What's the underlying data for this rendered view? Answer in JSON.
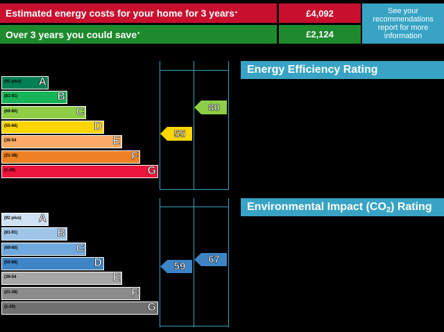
{
  "summary": {
    "cost_label": "Estimated energy costs for your home for 3 years",
    "cost_marker": "*",
    "cost_value": "£4,092",
    "save_label": "Over 3 years you could save",
    "save_marker": "*",
    "save_value": "£2,124",
    "see_text": "See your recommendations report for more information"
  },
  "energy": {
    "title": "Energy Efficiency Rating",
    "bands": [
      {
        "range": "(92 plus)",
        "letter": "A",
        "color": "#008054"
      },
      {
        "range": "(81-91)",
        "letter": "B",
        "color": "#19b459"
      },
      {
        "range": "(69-80)",
        "letter": "C",
        "color": "#8dce46"
      },
      {
        "range": "(55-68)",
        "letter": "D",
        "color": "#ffd500"
      },
      {
        "range": "(39-54",
        "letter": "E",
        "color": "#fcaa65"
      },
      {
        "range": "(21-38)",
        "letter": "F",
        "color": "#ef8023"
      },
      {
        "range": "(1-20)",
        "letter": "G",
        "color": "#e9153b"
      }
    ],
    "current": {
      "value": "55",
      "color": "#ffd500"
    },
    "potential": {
      "value": "80",
      "color": "#8dce46"
    }
  },
  "environment": {
    "title_prefix": "Environmental Impact (CO",
    "title_sub": "2",
    "title_suffix": ") Rating",
    "bands": [
      {
        "range": "(92 plus)",
        "letter": "A",
        "color": "#cfe2f3"
      },
      {
        "range": "(81-91)",
        "letter": "B",
        "color": "#9fc5e8"
      },
      {
        "range": "(69-80)",
        "letter": "C",
        "color": "#6fa8dc"
      },
      {
        "range": "(55-68)",
        "letter": "D",
        "color": "#3d85c6"
      },
      {
        "range": "(39-54",
        "letter": "E",
        "color": "#a6a6a6"
      },
      {
        "range": "(21-38)",
        "letter": "F",
        "color": "#8c8c8c"
      },
      {
        "range": "(1-20)",
        "letter": "G",
        "color": "#707070"
      }
    ],
    "current": {
      "value": "59",
      "color": "#3d85c6"
    },
    "potential": {
      "value": "67",
      "color": "#3d85c6"
    }
  }
}
